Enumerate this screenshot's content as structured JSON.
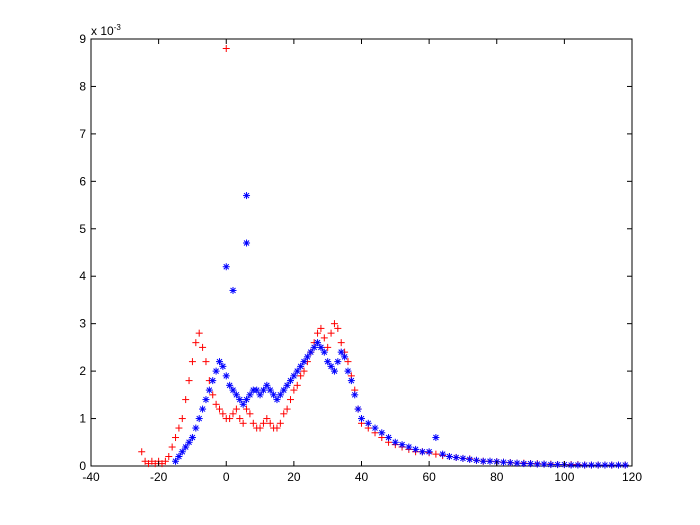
{
  "chart_data": {
    "type": "scatter",
    "title": "",
    "xlabel": "",
    "ylabel": "",
    "xlim": [
      -40,
      120
    ],
    "ylim": [
      0,
      0.009
    ],
    "x_ticks": [
      -40,
      -20,
      0,
      20,
      40,
      60,
      80,
      100,
      120
    ],
    "y_ticks": [
      0,
      1,
      2,
      3,
      4,
      5,
      6,
      7,
      8,
      9
    ],
    "y_multiplier": {
      "base": "x 10",
      "exponent": "-3"
    },
    "grid": false,
    "legend": "none",
    "series": [
      {
        "marker": "+",
        "color": "#ff0000",
        "x": [
          -25,
          -24,
          -23,
          -22,
          -21,
          -20,
          -19,
          -18,
          -17,
          -16,
          -15,
          -14,
          -13,
          -12,
          -11,
          -10,
          -9,
          -8,
          -7,
          -6,
          -5,
          -4,
          -3,
          -2,
          -1,
          0,
          1,
          2,
          3,
          4,
          5,
          6,
          7,
          8,
          9,
          10,
          11,
          12,
          13,
          14,
          15,
          16,
          17,
          18,
          19,
          20,
          21,
          22,
          23,
          24,
          25,
          26,
          27,
          28,
          29,
          30,
          31,
          32,
          33,
          34,
          35,
          36,
          37,
          38,
          39,
          40,
          42,
          44,
          46,
          48,
          50,
          52,
          54,
          56,
          58,
          60,
          62,
          64,
          66,
          68,
          70,
          72,
          74,
          76,
          78,
          80,
          82,
          84,
          86,
          88,
          90,
          92,
          94,
          96,
          98,
          100,
          102,
          104,
          106,
          108,
          110,
          112,
          114,
          116,
          118,
          0
        ],
        "y": [
          0.0003,
          0.0001,
          5e-05,
          0.0001,
          5e-05,
          0.0001,
          5e-05,
          0.0001,
          0.0002,
          0.0004,
          0.0006,
          0.0008,
          0.001,
          0.0014,
          0.0018,
          0.0022,
          0.0026,
          0.0028,
          0.0025,
          0.0022,
          0.0018,
          0.0015,
          0.0013,
          0.0012,
          0.0011,
          0.001,
          0.001,
          0.0011,
          0.0012,
          0.001,
          0.0009,
          0.0012,
          0.0011,
          0.0009,
          0.0008,
          0.0008,
          0.0009,
          0.001,
          0.0009,
          0.0008,
          0.0008,
          0.0009,
          0.0011,
          0.0012,
          0.0014,
          0.0016,
          0.0017,
          0.0019,
          0.002,
          0.0022,
          0.0024,
          0.0026,
          0.0028,
          0.0029,
          0.0027,
          0.0025,
          0.0028,
          0.003,
          0.0029,
          0.0026,
          0.0024,
          0.0022,
          0.0019,
          0.0016,
          0.0012,
          0.0009,
          0.0008,
          0.0007,
          0.0006,
          0.0005,
          0.00045,
          0.0004,
          0.00035,
          0.0003,
          0.0003,
          0.00028,
          0.00025,
          0.00022,
          0.0002,
          0.00018,
          0.00016,
          0.00015,
          0.00012,
          0.0001,
          0.0001,
          9e-05,
          8e-05,
          7e-05,
          6e-05,
          6e-05,
          5e-05,
          5e-05,
          4e-05,
          4e-05,
          3e-05,
          3e-05,
          3e-05,
          3e-05,
          2e-05,
          2e-05,
          2e-05,
          2e-05,
          2e-05,
          2e-05,
          2e-05,
          0.0088
        ]
      },
      {
        "marker": "*",
        "color": "#0000ff",
        "x": [
          -15,
          -14,
          -13,
          -12,
          -11,
          -10,
          -9,
          -8,
          -7,
          -6,
          -5,
          -4,
          -3,
          -2,
          -1,
          0,
          1,
          2,
          3,
          4,
          5,
          6,
          7,
          8,
          9,
          10,
          11,
          12,
          13,
          14,
          15,
          16,
          17,
          18,
          19,
          20,
          21,
          22,
          23,
          24,
          25,
          26,
          27,
          28,
          29,
          30,
          31,
          32,
          33,
          34,
          35,
          36,
          37,
          38,
          39,
          40,
          42,
          44,
          46,
          48,
          50,
          52,
          54,
          56,
          58,
          60,
          62,
          64,
          66,
          68,
          70,
          72,
          74,
          76,
          78,
          80,
          82,
          84,
          86,
          88,
          90,
          92,
          94,
          96,
          98,
          100,
          102,
          104,
          106,
          108,
          110,
          112,
          114,
          116,
          118,
          0,
          2,
          6,
          6
        ],
        "y": [
          0.0001,
          0.0002,
          0.0003,
          0.0004,
          0.0005,
          0.0006,
          0.0008,
          0.001,
          0.0012,
          0.0014,
          0.0016,
          0.0018,
          0.002,
          0.0022,
          0.0021,
          0.0019,
          0.0017,
          0.0016,
          0.0015,
          0.0014,
          0.0013,
          0.0014,
          0.0015,
          0.0016,
          0.0016,
          0.0015,
          0.0016,
          0.0017,
          0.0016,
          0.0015,
          0.0014,
          0.0015,
          0.0016,
          0.0017,
          0.0018,
          0.0019,
          0.002,
          0.0021,
          0.0022,
          0.0023,
          0.0024,
          0.0025,
          0.0026,
          0.0025,
          0.0024,
          0.0022,
          0.0021,
          0.002,
          0.0022,
          0.0024,
          0.0023,
          0.002,
          0.0018,
          0.0015,
          0.0012,
          0.001,
          0.0009,
          0.0008,
          0.0007,
          0.0006,
          0.0005,
          0.00045,
          0.0004,
          0.00035,
          0.0003,
          0.0003,
          0.0006,
          0.00025,
          0.0002,
          0.00018,
          0.00016,
          0.00014,
          0.00012,
          0.0001,
          0.0001,
          9e-05,
          8e-05,
          7e-05,
          6e-05,
          5e-05,
          5e-05,
          4e-05,
          4e-05,
          3e-05,
          3e-05,
          3e-05,
          2e-05,
          2e-05,
          2e-05,
          2e-05,
          2e-05,
          2e-05,
          2e-05,
          2e-05,
          2e-05,
          0.0042,
          0.0037,
          0.0057,
          0.0047
        ]
      }
    ]
  }
}
